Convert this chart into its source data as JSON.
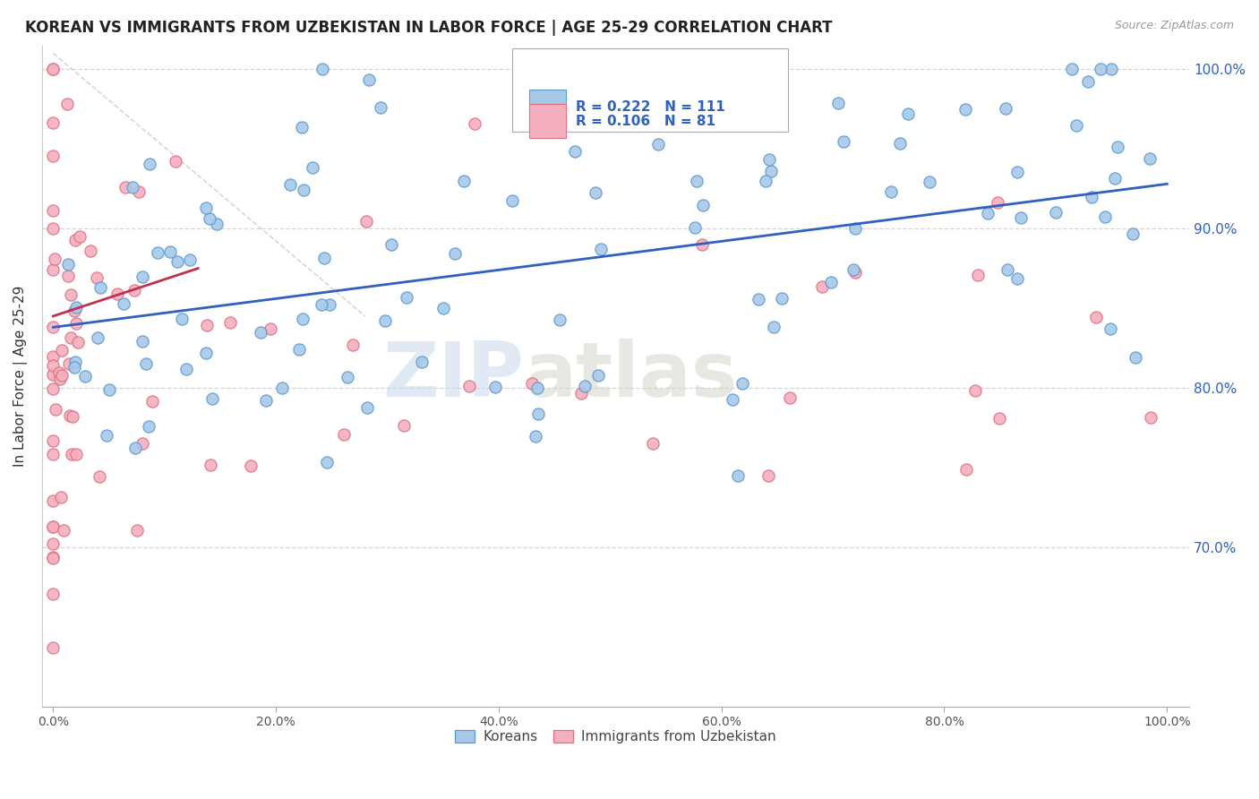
{
  "title": "KOREAN VS IMMIGRANTS FROM UZBEKISTAN IN LABOR FORCE | AGE 25-29 CORRELATION CHART",
  "source": "Source: ZipAtlas.com",
  "ylabel": "In Labor Force | Age 25-29",
  "x_tick_labels": [
    "0.0%",
    "20.0%",
    "40.0%",
    "60.0%",
    "80.0%",
    "100.0%"
  ],
  "y_tick_vals": [
    0.7,
    0.8,
    0.9,
    1.0
  ],
  "y_tick_labels": [
    "70.0%",
    "80.0%",
    "90.0%",
    "100.0%"
  ],
  "ylim_low": 0.6,
  "ylim_high": 1.015,
  "xlim_low": -0.01,
  "xlim_high": 1.02,
  "korean_color": "#a8c8e8",
  "korean_edge_color": "#5b9bd5",
  "uzbek_color": "#f4b0bf",
  "uzbek_edge_color": "#e07080",
  "trend_korean_color": "#3060c0",
  "trend_uzbek_color": "#c03050",
  "ref_line_color": "#ccbbcc",
  "R_korean": 0.222,
  "N_korean": 111,
  "R_uzbek": 0.106,
  "N_uzbek": 81,
  "legend_text_color": "#3060c0",
  "right_axis_color": "#3060c0",
  "watermark1": "ZIP",
  "watermark2": "atlas",
  "grid_color": "#cccccc",
  "title_color": "#222222",
  "source_color": "#999999"
}
